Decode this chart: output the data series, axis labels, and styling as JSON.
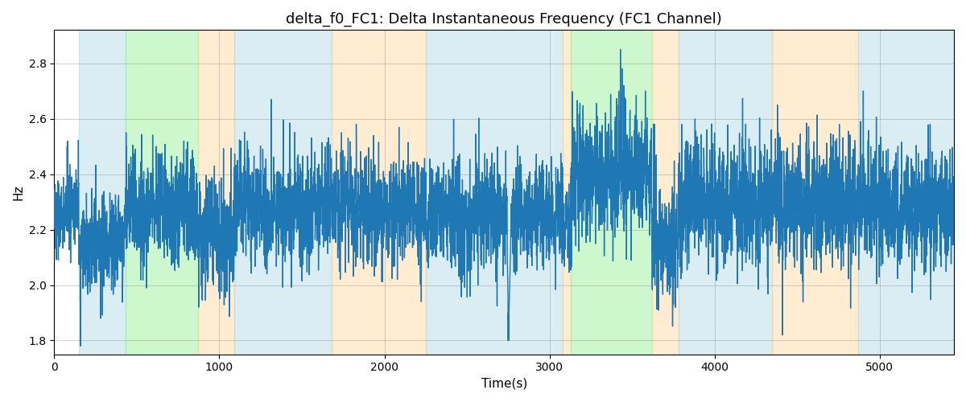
{
  "title": "delta_f0_FC1: Delta Instantaneous Frequency (FC1 Channel)",
  "xlabel": "Time(s)",
  "ylabel": "Hz",
  "xlim": [
    0,
    5450
  ],
  "ylim": [
    1.75,
    2.92
  ],
  "grid": true,
  "line_color": "#1f77b4",
  "line_width": 1.0,
  "background_color": "#ffffff",
  "figsize": [
    12,
    5
  ],
  "dpi": 100,
  "regions": [
    {
      "xmin": 150,
      "xmax": 430,
      "color": "#add8e6",
      "alpha": 0.45
    },
    {
      "xmin": 430,
      "xmax": 870,
      "color": "#90ee90",
      "alpha": 0.45
    },
    {
      "xmin": 870,
      "xmax": 1090,
      "color": "#ffd59b",
      "alpha": 0.45
    },
    {
      "xmin": 1090,
      "xmax": 1680,
      "color": "#add8e6",
      "alpha": 0.45
    },
    {
      "xmin": 1680,
      "xmax": 2250,
      "color": "#ffd59b",
      "alpha": 0.45
    },
    {
      "xmin": 2250,
      "xmax": 3080,
      "color": "#add8e6",
      "alpha": 0.45
    },
    {
      "xmin": 3080,
      "xmax": 3130,
      "color": "#ffd59b",
      "alpha": 0.45
    },
    {
      "xmin": 3130,
      "xmax": 3620,
      "color": "#90ee90",
      "alpha": 0.45
    },
    {
      "xmin": 3620,
      "xmax": 3780,
      "color": "#ffd59b",
      "alpha": 0.45
    },
    {
      "xmin": 3780,
      "xmax": 4350,
      "color": "#add8e6",
      "alpha": 0.45
    },
    {
      "xmin": 4350,
      "xmax": 4870,
      "color": "#ffd59b",
      "alpha": 0.45
    },
    {
      "xmin": 4870,
      "xmax": 5450,
      "color": "#add8e6",
      "alpha": 0.45
    }
  ],
  "yticks": [
    1.8,
    2.0,
    2.2,
    2.4,
    2.6,
    2.8
  ],
  "xticks": [
    0,
    1000,
    2000,
    3000,
    4000,
    5000
  ],
  "seed": 12345,
  "n_points": 5450,
  "time_start": 0,
  "time_end": 5450
}
